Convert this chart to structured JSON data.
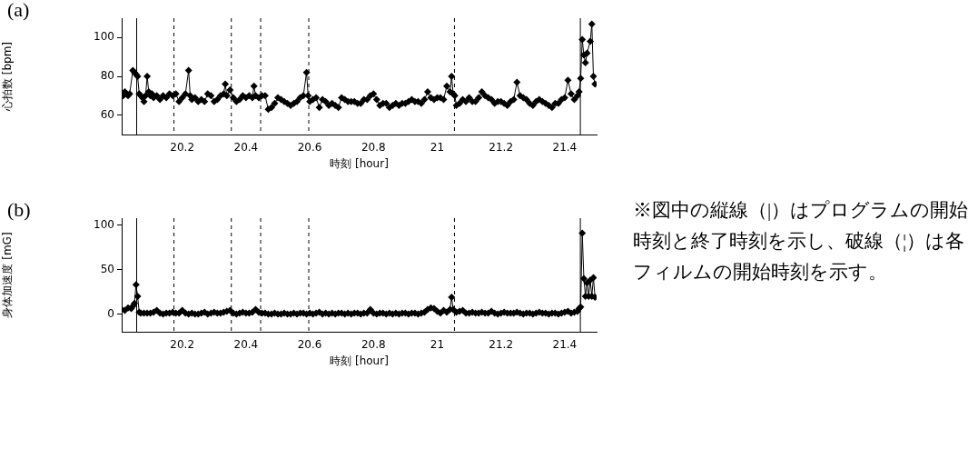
{
  "chart_data": [
    {
      "type": "line",
      "title": "(a)",
      "xlabel": "時刻 [hour]",
      "ylabel": "心拍数 [bpm]",
      "marker": "diamond",
      "grid": false,
      "legend": false,
      "xlim": [
        20.01,
        21.5
      ],
      "xticks": [
        20.2,
        20.4,
        20.6,
        20.8,
        21,
        21.2,
        21.4
      ],
      "ylim": [
        50,
        110
      ],
      "yticks": [
        60,
        80,
        100
      ],
      "ref_lines": [
        {
          "axis": "x",
          "value": 20.057,
          "line_style": "solid",
          "color": "#000000"
        },
        {
          "axis": "x",
          "value": 20.174,
          "line_style": "dashed",
          "color": "#000000"
        },
        {
          "axis": "x",
          "value": 20.354,
          "line_style": "dashed",
          "color": "#000000"
        },
        {
          "axis": "x",
          "value": 20.446,
          "line_style": "dashed",
          "color": "#000000"
        },
        {
          "axis": "x",
          "value": 20.597,
          "line_style": "dashed",
          "color": "#000000"
        },
        {
          "axis": "x",
          "value": 21.054,
          "line_style": "dashed",
          "color": "#000000"
        },
        {
          "axis": "x",
          "value": 21.449,
          "line_style": "solid",
          "color": "#000000"
        }
      ],
      "series": [
        {
          "color": "#000000",
          "x": [
            20.01,
            20.015,
            20.02,
            20.025,
            20.03,
            20.035,
            20.045,
            20.05,
            20.055,
            20.06,
            20.065,
            20.07,
            20.075,
            20.08,
            20.085,
            20.09,
            20.095,
            20.1,
            20.105,
            20.11,
            20.12,
            20.13,
            20.14,
            20.15,
            20.16,
            20.17,
            20.18,
            20.19,
            20.2,
            20.21,
            20.22,
            20.225,
            20.23,
            20.24,
            20.25,
            20.26,
            20.27,
            20.28,
            20.29,
            20.3,
            20.31,
            20.32,
            20.33,
            20.335,
            20.34,
            20.35,
            20.36,
            20.37,
            20.38,
            20.39,
            20.4,
            20.41,
            20.42,
            20.425,
            20.43,
            20.44,
            20.45,
            20.46,
            20.47,
            20.48,
            20.49,
            20.5,
            20.51,
            20.52,
            20.53,
            20.54,
            20.55,
            20.56,
            20.57,
            20.58,
            20.59,
            20.595,
            20.6,
            20.61,
            20.62,
            20.63,
            20.64,
            20.65,
            20.66,
            20.67,
            20.68,
            20.69,
            20.7,
            20.71,
            20.72,
            20.73,
            20.74,
            20.75,
            20.76,
            20.77,
            20.78,
            20.79,
            20.8,
            20.81,
            20.82,
            20.83,
            20.84,
            20.85,
            20.86,
            20.87,
            20.88,
            20.89,
            20.9,
            20.91,
            20.92,
            20.93,
            20.94,
            20.95,
            20.96,
            20.97,
            20.98,
            20.99,
            21,
            21.01,
            21.02,
            21.03,
            21.04,
            21.045,
            21.05,
            21.055,
            21.06,
            21.07,
            21.08,
            21.09,
            21.1,
            21.11,
            21.12,
            21.13,
            21.14,
            21.15,
            21.16,
            21.17,
            21.18,
            21.19,
            21.2,
            21.21,
            21.22,
            21.23,
            21.24,
            21.25,
            21.26,
            21.27,
            21.28,
            21.29,
            21.3,
            21.31,
            21.32,
            21.33,
            21.34,
            21.35,
            21.36,
            21.37,
            21.38,
            21.39,
            21.4,
            21.41,
            21.42,
            21.43,
            21.44,
            21.445,
            21.45,
            21.455,
            21.46,
            21.465,
            21.47,
            21.48,
            21.485,
            21.49,
            21.495
          ],
          "values": [
            71,
            70,
            72,
            71,
            70,
            71,
            83,
            82,
            81,
            80,
            71,
            70,
            69,
            67,
            70,
            80,
            72,
            70,
            71,
            69,
            70,
            68,
            70,
            69,
            71,
            70,
            71,
            67,
            69,
            71,
            83,
            70,
            68,
            69,
            67,
            68,
            67,
            71,
            70,
            67,
            68,
            70,
            71,
            76,
            70,
            73,
            69,
            67,
            68,
            70,
            69,
            70,
            69,
            75,
            70,
            69,
            70,
            70,
            63,
            64,
            66,
            69,
            68,
            67,
            66,
            65,
            66,
            67,
            69,
            70,
            82,
            70,
            67,
            68,
            69,
            64,
            68,
            67,
            65,
            66,
            65,
            64,
            69,
            68,
            67,
            67,
            67,
            66,
            66,
            68,
            68,
            70,
            71,
            68,
            65,
            66,
            66,
            64,
            65,
            66,
            65,
            66,
            66,
            67,
            68,
            67,
            67,
            66,
            68,
            72,
            69,
            68,
            69,
            69,
            68,
            75,
            72,
            80,
            71,
            70,
            65,
            66,
            68,
            67,
            69,
            67,
            67,
            69,
            72,
            70,
            69,
            68,
            66,
            67,
            67,
            66,
            65,
            67,
            68,
            77,
            70,
            69,
            68,
            66,
            65,
            67,
            68,
            67,
            66,
            65,
            64,
            66,
            66,
            68,
            69,
            78,
            71,
            68,
            70,
            72,
            79,
            99,
            91,
            87,
            92,
            98,
            107,
            80,
            76
          ]
        }
      ]
    },
    {
      "type": "line",
      "title": "(b)",
      "xlabel": "時刻 [hour]",
      "ylabel": "身体加速度 [mG]",
      "marker": "diamond",
      "grid": false,
      "legend": false,
      "xlim": [
        20.01,
        21.5
      ],
      "xticks": [
        20.2,
        20.4,
        20.6,
        20.8,
        21,
        21.2,
        21.4
      ],
      "ylim": [
        -20,
        108
      ],
      "yticks": [
        0,
        50,
        100
      ],
      "annotations": [
        "※図中の縦線（|）はプログラムの開始時刻と終了時刻を示し、破線（¦）は各フィルムの開始時刻を示す。"
      ],
      "ref_lines": [
        {
          "axis": "x",
          "value": 20.057,
          "line_style": "solid",
          "color": "#000000"
        },
        {
          "axis": "x",
          "value": 20.174,
          "line_style": "dashed",
          "color": "#000000"
        },
        {
          "axis": "x",
          "value": 20.354,
          "line_style": "dashed",
          "color": "#000000"
        },
        {
          "axis": "x",
          "value": 20.446,
          "line_style": "dashed",
          "color": "#000000"
        },
        {
          "axis": "x",
          "value": 20.597,
          "line_style": "dashed",
          "color": "#000000"
        },
        {
          "axis": "x",
          "value": 21.054,
          "line_style": "dashed",
          "color": "#000000"
        },
        {
          "axis": "x",
          "value": 21.449,
          "line_style": "solid",
          "color": "#000000"
        }
      ],
      "series": [
        {
          "color": "#000000",
          "x": [
            20.01,
            20.02,
            20.03,
            20.04,
            20.045,
            20.05,
            20.055,
            20.06,
            20.065,
            20.07,
            20.08,
            20.09,
            20.1,
            20.11,
            20.12,
            20.13,
            20.14,
            20.15,
            20.16,
            20.17,
            20.18,
            20.19,
            20.2,
            20.21,
            20.22,
            20.23,
            20.24,
            20.25,
            20.26,
            20.27,
            20.28,
            20.29,
            20.3,
            20.31,
            20.32,
            20.33,
            20.34,
            20.35,
            20.36,
            20.37,
            20.38,
            20.39,
            20.4,
            20.41,
            20.42,
            20.43,
            20.44,
            20.45,
            20.46,
            20.47,
            20.48,
            20.49,
            20.5,
            20.51,
            20.52,
            20.53,
            20.54,
            20.55,
            20.56,
            20.57,
            20.58,
            20.59,
            20.6,
            20.61,
            20.62,
            20.63,
            20.64,
            20.65,
            20.66,
            20.67,
            20.68,
            20.69,
            20.7,
            20.71,
            20.72,
            20.73,
            20.74,
            20.75,
            20.76,
            20.77,
            20.78,
            20.79,
            20.8,
            20.81,
            20.82,
            20.83,
            20.84,
            20.85,
            20.86,
            20.87,
            20.88,
            20.89,
            20.9,
            20.91,
            20.92,
            20.93,
            20.94,
            20.95,
            20.96,
            20.97,
            20.98,
            20.99,
            21,
            21.01,
            21.02,
            21.03,
            21.04,
            21.045,
            21.05,
            21.06,
            21.07,
            21.08,
            21.09,
            21.1,
            21.11,
            21.12,
            21.13,
            21.14,
            21.15,
            21.16,
            21.17,
            21.18,
            21.19,
            21.2,
            21.21,
            21.22,
            21.23,
            21.24,
            21.25,
            21.26,
            21.27,
            21.28,
            21.29,
            21.3,
            21.31,
            21.32,
            21.33,
            21.34,
            21.35,
            21.36,
            21.37,
            21.38,
            21.39,
            21.4,
            21.41,
            21.42,
            21.43,
            21.44,
            21.445,
            21.45,
            21.455,
            21.46,
            21.465,
            21.47,
            21.475,
            21.48,
            21.485,
            21.49,
            21.495
          ],
          "values": [
            5,
            4,
            7,
            6,
            9,
            12,
            33,
            20,
            2,
            1,
            1,
            1,
            1,
            2,
            4,
            1,
            0,
            1,
            1,
            2,
            1,
            1,
            4,
            1,
            0,
            1,
            0,
            0,
            1,
            2,
            0,
            1,
            2,
            1,
            1,
            2,
            3,
            4,
            1,
            0,
            1,
            2,
            1,
            1,
            2,
            5,
            2,
            1,
            1,
            0,
            0,
            1,
            0,
            0,
            1,
            0,
            0,
            1,
            0,
            1,
            1,
            0,
            1,
            0,
            1,
            2,
            0,
            1,
            0,
            1,
            0,
            1,
            1,
            0,
            1,
            0,
            1,
            1,
            0,
            1,
            1,
            5,
            1,
            0,
            1,
            1,
            0,
            1,
            0,
            1,
            0,
            1,
            1,
            0,
            1,
            1,
            0,
            1,
            2,
            5,
            7,
            6,
            3,
            1,
            4,
            2,
            5,
            19,
            5,
            2,
            3,
            4,
            1,
            1,
            2,
            1,
            1,
            2,
            1,
            1,
            3,
            1,
            0,
            1,
            2,
            1,
            1,
            1,
            2,
            1,
            0,
            1,
            1,
            0,
            1,
            2,
            1,
            1,
            0,
            1,
            1,
            0,
            1,
            2,
            3,
            1,
            2,
            3,
            6,
            8,
            91,
            40,
            20,
            35,
            20,
            38,
            20,
            41,
            19
          ]
        }
      ]
    }
  ]
}
